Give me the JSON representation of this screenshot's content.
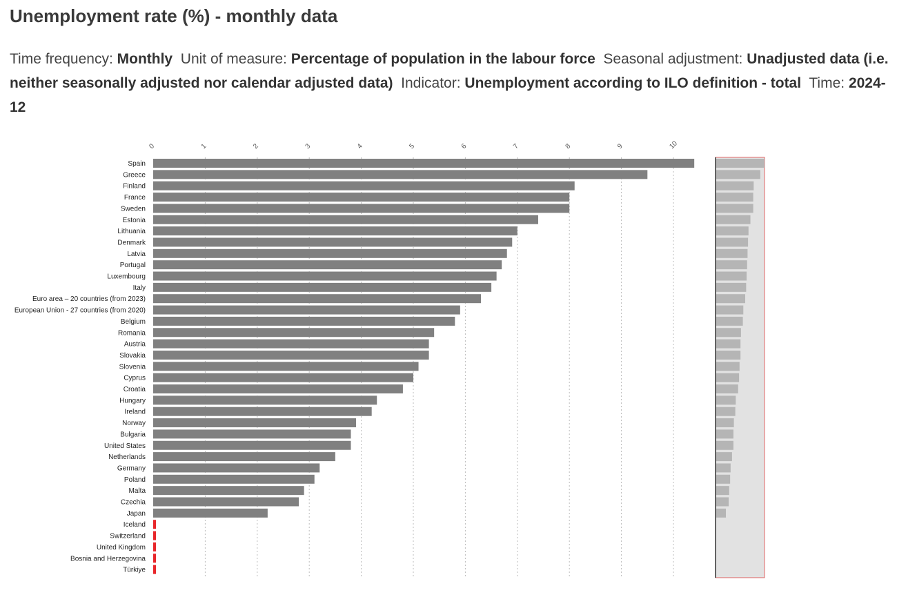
{
  "page": {
    "title": "Unemployment rate (%) - monthly data",
    "meta": [
      {
        "label": "Time frequency:",
        "value": "Monthly"
      },
      {
        "label": "Unit of measure:",
        "value": "Percentage of population in the labour force"
      },
      {
        "label": "Seasonal adjustment:",
        "value": "Unadjusted data (i.e. neither seasonally adjusted nor calendar adjusted data)"
      },
      {
        "label": "Indicator:",
        "value": "Unemployment according to ILO definition - total"
      },
      {
        "label": "Time:",
        "value": "2024-12"
      }
    ]
  },
  "colors": {
    "bar": "#808080",
    "missing": "#e8262a",
    "grid": "#bbbbbb",
    "overview_bg": "#e2e2e2",
    "overview_bar": "#b5b5b5",
    "overview_border": "#e06666"
  },
  "chart_data": {
    "type": "bar",
    "orientation": "horizontal",
    "title": "Unemployment rate (%) - monthly data",
    "xlabel": "",
    "ylabel": "",
    "xlim": [
      0,
      11
    ],
    "xticks": [
      0,
      1,
      2,
      3,
      4,
      5,
      6,
      7,
      8,
      9,
      10
    ],
    "grid": true,
    "categories": [
      "Spain",
      "Greece",
      "Finland",
      "France",
      "Sweden",
      "Estonia",
      "Lithuania",
      "Denmark",
      "Latvia",
      "Portugal",
      "Luxembourg",
      "Italy",
      "Euro area – 20 countries (from 2023)",
      "European Union - 27 countries (from 2020)",
      "Belgium",
      "Romania",
      "Austria",
      "Slovakia",
      "Slovenia",
      "Cyprus",
      "Croatia",
      "Hungary",
      "Ireland",
      "Norway",
      "Bulgaria",
      "United States",
      "Netherlands",
      "Germany",
      "Poland",
      "Malta",
      "Czechia",
      "Japan",
      "Iceland",
      "Switzerland",
      "United Kingdom",
      "Bosnia and Herzegovina",
      "Türkiye"
    ],
    "values": [
      10.4,
      9.5,
      8.1,
      8.0,
      8.0,
      7.4,
      7.0,
      6.9,
      6.8,
      6.7,
      6.6,
      6.5,
      6.3,
      5.9,
      5.8,
      5.4,
      5.3,
      5.3,
      5.1,
      5.0,
      4.8,
      4.3,
      4.2,
      3.9,
      3.8,
      3.8,
      3.5,
      3.2,
      3.1,
      2.9,
      2.8,
      2.2,
      null,
      null,
      null,
      null,
      null
    ]
  }
}
